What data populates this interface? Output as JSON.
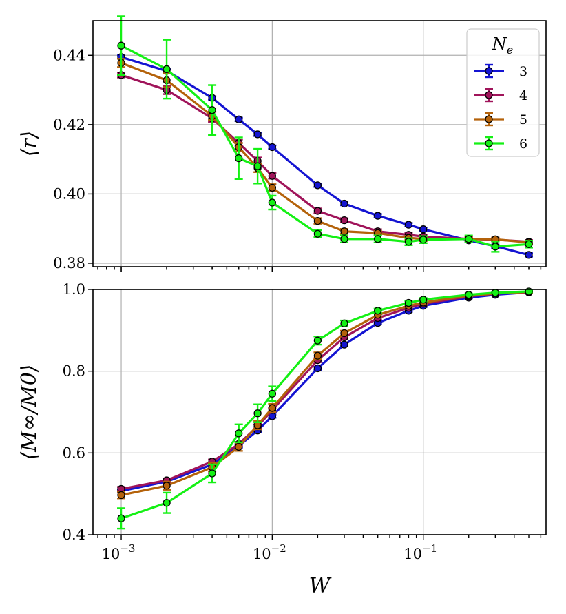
{
  "chart_data": [
    {
      "type": "line",
      "ylabel": "⟨r⟩",
      "xscale": "log",
      "xlim": [
        0.00065,
        0.65
      ],
      "ylim": [
        0.379,
        0.45
      ],
      "yticks": [
        0.38,
        0.4,
        0.42,
        0.44
      ],
      "yticklabels": [
        "0.38",
        "0.40",
        "0.42",
        "0.44"
      ],
      "grid": true,
      "legend": {
        "title": "N_e",
        "title_base": "N",
        "title_sub": "e",
        "placement": "top-right"
      },
      "x": [
        0.001,
        0.002,
        0.004,
        0.006,
        0.008,
        0.01,
        0.02,
        0.03,
        0.05,
        0.08,
        0.1,
        0.2,
        0.3,
        0.5
      ],
      "series": [
        {
          "name": "3",
          "color": "#1414d2",
          "values": [
            0.4395,
            0.4355,
            0.4277,
            0.4215,
            0.4172,
            0.4135,
            0.4025,
            0.3972,
            0.3937,
            0.3911,
            0.3898,
            0.3866,
            0.3849,
            0.3824
          ],
          "errors": [
            0.0005,
            0.0005,
            0.0005,
            0.0005,
            0.0005,
            0.0005,
            0.0005,
            0.0005,
            0.0005,
            0.0005,
            0.0005,
            0.0005,
            0.0005,
            0.0005
          ]
        },
        {
          "name": "4",
          "color": "#a0145a",
          "values": [
            0.4343,
            0.43,
            0.4218,
            0.4147,
            0.4095,
            0.4052,
            0.3951,
            0.3924,
            0.3892,
            0.3882,
            0.3877,
            0.387,
            0.3868,
            0.3862
          ],
          "errors": [
            0.0007,
            0.0012,
            0.001,
            0.001,
            0.001,
            0.0008,
            0.0007,
            0.0006,
            0.0006,
            0.0006,
            0.0006,
            0.0005,
            0.0005,
            0.0005
          ]
        },
        {
          "name": "5",
          "color": "#b4620a",
          "values": [
            0.4378,
            0.4328,
            0.4225,
            0.4135,
            0.4075,
            0.4018,
            0.3922,
            0.3892,
            0.3887,
            0.3873,
            0.387,
            0.387,
            0.3869,
            0.386
          ],
          "errors": [
            0.0012,
            0.002,
            0.0012,
            0.0012,
            0.0012,
            0.001,
            0.0008,
            0.0007,
            0.0006,
            0.0006,
            0.0006,
            0.0005,
            0.0005,
            0.0005
          ]
        },
        {
          "name": "6",
          "color": "#14f014",
          "values": [
            0.4428,
            0.436,
            0.4242,
            0.4103,
            0.408,
            0.3975,
            0.3885,
            0.387,
            0.387,
            0.3862,
            0.3868,
            0.387,
            0.3848,
            0.3855
          ],
          "errors": [
            0.0085,
            0.0085,
            0.0072,
            0.006,
            0.005,
            0.002,
            0.001,
            0.001,
            0.001,
            0.001,
            0.001,
            0.001,
            0.0015,
            0.001
          ]
        }
      ]
    },
    {
      "type": "line",
      "xlabel": "W",
      "ylabel": "⟨M∞/M0⟩",
      "xscale": "log",
      "xlim": [
        0.00065,
        0.65
      ],
      "ylim": [
        0.4,
        1.0
      ],
      "yticks": [
        0.4,
        0.6,
        0.8,
        1.0
      ],
      "yticklabels": [
        "0.4",
        "0.6",
        "0.8",
        "1.0"
      ],
      "xticks": [
        0.001,
        0.01,
        0.1
      ],
      "xticklabels": [
        {
          "base": "10",
          "exp": "−3"
        },
        {
          "base": "10",
          "exp": "−2"
        },
        {
          "base": "10",
          "exp": "−1"
        }
      ],
      "grid": true,
      "x": [
        0.001,
        0.002,
        0.004,
        0.006,
        0.008,
        0.01,
        0.02,
        0.03,
        0.05,
        0.08,
        0.1,
        0.2,
        0.3,
        0.5
      ],
      "series": [
        {
          "name": "3",
          "color": "#1414d2",
          "values": [
            0.507,
            0.53,
            0.572,
            0.617,
            0.655,
            0.69,
            0.807,
            0.865,
            0.918,
            0.948,
            0.96,
            0.98,
            0.987,
            0.993
          ],
          "errors": [
            0.004,
            0.004,
            0.004,
            0.004,
            0.004,
            0.004,
            0.004,
            0.004,
            0.003,
            0.003,
            0.003,
            0.002,
            0.002,
            0.002
          ]
        },
        {
          "name": "4",
          "color": "#a0145a",
          "values": [
            0.512,
            0.533,
            0.579,
            0.622,
            0.665,
            0.705,
            0.827,
            0.883,
            0.93,
            0.955,
            0.965,
            0.983,
            0.99,
            0.993
          ],
          "errors": [
            0.005,
            0.005,
            0.005,
            0.005,
            0.005,
            0.005,
            0.005,
            0.004,
            0.004,
            0.003,
            0.003,
            0.002,
            0.002,
            0.002
          ]
        },
        {
          "name": "5",
          "color": "#b4620a",
          "values": [
            0.497,
            0.52,
            0.565,
            0.615,
            0.668,
            0.71,
            0.838,
            0.893,
            0.938,
            0.96,
            0.968,
            0.985,
            0.99,
            0.994
          ],
          "errors": [
            0.008,
            0.01,
            0.01,
            0.01,
            0.01,
            0.01,
            0.008,
            0.006,
            0.005,
            0.004,
            0.003,
            0.002,
            0.002,
            0.002
          ]
        },
        {
          "name": "6",
          "color": "#14f014",
          "values": [
            0.44,
            0.478,
            0.55,
            0.648,
            0.697,
            0.745,
            0.875,
            0.917,
            0.948,
            0.967,
            0.975,
            0.987,
            0.992,
            0.995
          ],
          "errors": [
            0.025,
            0.025,
            0.022,
            0.022,
            0.022,
            0.018,
            0.01,
            0.007,
            0.005,
            0.004,
            0.004,
            0.003,
            0.002,
            0.002
          ]
        }
      ]
    }
  ]
}
